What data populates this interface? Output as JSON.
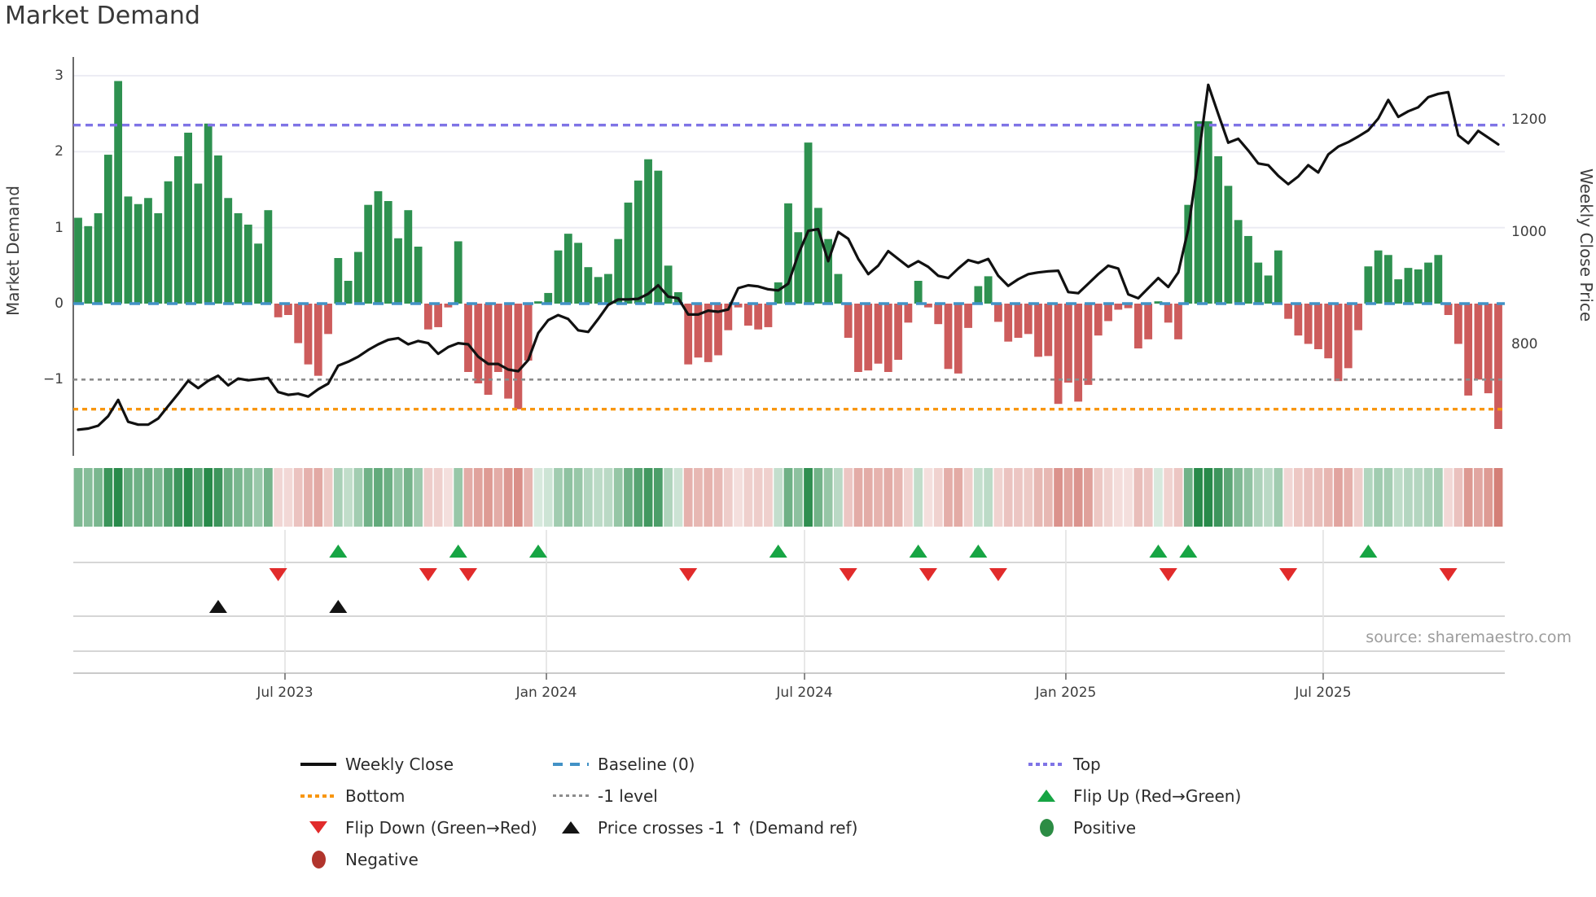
{
  "title": "Market Demand",
  "source": "source: sharemaestro.com",
  "axes": {
    "left_label": "Market Demand",
    "right_label": "Weekly Close Price",
    "left_ticks": [
      {
        "label": "3",
        "value": 3
      },
      {
        "label": "2",
        "value": 2
      },
      {
        "label": "1",
        "value": 1
      },
      {
        "label": "0",
        "value": 0
      },
      {
        "label": "−1",
        "value": -1
      }
    ],
    "right_ticks": [
      {
        "label": "1200",
        "value": 1200
      },
      {
        "label": "1000",
        "value": 1000
      },
      {
        "label": "800",
        "value": 800
      }
    ]
  },
  "chart_data": {
    "type": "bar+line",
    "x_unit": "week",
    "x_ticks": [
      {
        "label": "Jul 2023",
        "week": 20.68
      },
      {
        "label": "Jan 2024",
        "week": 46.82
      },
      {
        "label": "Jul 2024",
        "week": 72.63
      },
      {
        "label": "Jan 2025",
        "week": 98.76
      },
      {
        "label": "Jul 2025",
        "week": 124.49
      }
    ],
    "demand_ylim": [
      -2.05,
      3.22
    ],
    "price_ylim": [
      595,
      1306
    ],
    "reference_lines": {
      "baseline": {
        "label": "Baseline (0)",
        "value": 0,
        "color": "#4292c6",
        "style": "dashed"
      },
      "top": {
        "label": "Top",
        "value": 2.35,
        "color": "#7f74e6",
        "style": "dotted"
      },
      "bottom": {
        "label": "Bottom",
        "value": -1.39,
        "color": "#f8960f",
        "style": "dotted"
      },
      "minus1": {
        "label": "-1 level",
        "value": -1,
        "color": "#8c8c8c",
        "style": "dotted"
      }
    },
    "series": [
      {
        "name": "Market Demand",
        "type": "bar",
        "axis": "left",
        "positive_color": "#2e9150",
        "negative_color": "#cd5c5c",
        "values": [
          1.13,
          1.02,
          1.19,
          1.96,
          2.93,
          1.41,
          1.31,
          1.39,
          1.19,
          1.61,
          1.94,
          2.25,
          1.58,
          2.37,
          1.95,
          1.39,
          1.19,
          1.04,
          0.79,
          1.23,
          -0.18,
          -0.15,
          -0.52,
          -0.8,
          -0.95,
          -0.4,
          0.6,
          0.3,
          0.68,
          1.3,
          1.48,
          1.35,
          0.86,
          1.23,
          0.75,
          -0.34,
          -0.31,
          -0.05,
          0.82,
          -0.9,
          -1.05,
          -1.2,
          -0.9,
          -1.25,
          -1.39,
          -0.75,
          0.03,
          0.14,
          0.7,
          0.92,
          0.8,
          0.48,
          0.35,
          0.39,
          0.85,
          1.33,
          1.62,
          1.9,
          1.75,
          0.5,
          0.15,
          -0.8,
          -0.71,
          -0.77,
          -0.68,
          -0.35,
          -0.05,
          -0.29,
          -0.34,
          -0.31,
          0.28,
          1.32,
          0.94,
          2.12,
          1.26,
          0.85,
          0.39,
          -0.45,
          -0.9,
          -0.88,
          -0.79,
          -0.9,
          -0.74,
          -0.25,
          0.3,
          -0.05,
          -0.27,
          -0.86,
          -0.92,
          -0.32,
          0.23,
          0.36,
          -0.24,
          -0.5,
          -0.45,
          -0.4,
          -0.7,
          -0.69,
          -1.32,
          -1.04,
          -1.29,
          -1.07,
          -0.42,
          -0.23,
          -0.08,
          -0.06,
          -0.59,
          -0.47,
          0.03,
          -0.25,
          -0.47,
          1.3,
          2.4,
          2.4,
          1.94,
          1.55,
          1.1,
          0.89,
          0.54,
          0.37,
          0.7,
          -0.2,
          -0.42,
          -0.53,
          -0.6,
          -0.72,
          -1.02,
          -0.85,
          -0.35,
          0.49,
          0.7,
          0.64,
          0.32,
          0.47,
          0.45,
          0.54,
          0.64,
          -0.15,
          -0.53,
          -1.21,
          -1.0,
          -1.18,
          -1.65
        ]
      },
      {
        "name": "Weekly Close",
        "type": "line",
        "axis": "right",
        "color": "#111111",
        "values": [
          648,
          650,
          655,
          672,
          701,
          662,
          657,
          657,
          668,
          690,
          712,
          735,
          722,
          735,
          744,
          727,
          739,
          736,
          738,
          740,
          715,
          710,
          712,
          707,
          720,
          730,
          762,
          769,
          778,
          790,
          800,
          808,
          811,
          800,
          806,
          802,
          783,
          795,
          802,
          800,
          778,
          765,
          765,
          755,
          752,
          772,
          820,
          843,
          852,
          845,
          825,
          822,
          845,
          870,
          880,
          880,
          881,
          890,
          905,
          885,
          882,
          853,
          853,
          860,
          858,
          862,
          900,
          905,
          903,
          898,
          896,
          908,
          960,
          1002,
          1005,
          948,
          1000,
          988,
          952,
          925,
          940,
          966,
          952,
          938,
          948,
          938,
          922,
          918,
          935,
          950,
          945,
          952,
          922,
          904,
          916,
          925,
          928,
          930,
          931,
          893,
          891,
          908,
          925,
          940,
          935,
          889,
          882,
          900,
          918,
          902,
          928,
          1005,
          1130,
          1262,
          1210,
          1159,
          1166,
          1145,
          1122,
          1119,
          1100,
          1085,
          1099,
          1119,
          1106,
          1138,
          1152,
          1160,
          1170,
          1181,
          1202,
          1235,
          1205,
          1215,
          1222,
          1240,
          1246,
          1249,
          1172,
          1158,
          1180,
          1168,
          1156
        ]
      }
    ],
    "heat_strip": "green/red cells derived from demand sign, intensity by magnitude",
    "markers": {
      "flip_up": {
        "label": "Flip Up (Red→Green)",
        "color": "#17a544",
        "weeks": [
          26,
          38,
          46,
          70,
          84,
          90,
          108,
          111,
          129
        ]
      },
      "flip_down": {
        "label": "Flip Down (Green→Red)",
        "color": "#e12b2b",
        "weeks": [
          20,
          35,
          39,
          61,
          77,
          85,
          92,
          109,
          121,
          137
        ]
      },
      "price_cross": {
        "label": "Price crosses -1 ↑ (Demand ref)",
        "color": "#141414",
        "weeks": [
          14,
          26
        ]
      }
    }
  },
  "legend": {
    "items": [
      {
        "symbol": "black-line",
        "label": "Weekly Close"
      },
      {
        "symbol": "orange-dotted",
        "label": "Bottom"
      },
      {
        "symbol": "red-triangle-down",
        "label": "Flip Down (Green→Red)"
      },
      {
        "symbol": "darkred-circle",
        "label": "Negative"
      },
      {
        "symbol": "blue-dashed",
        "label": "Baseline (0)"
      },
      {
        "symbol": "gray-dotted",
        "label": "-1 level"
      },
      {
        "symbol": "black-triangle-up",
        "label": "Price crosses -1 ↑ (Demand ref)"
      },
      {
        "symbol": "purple-dotted",
        "label": "Top"
      },
      {
        "symbol": "green-triangle-up",
        "label": "Flip Up (Red→Green)"
      },
      {
        "symbol": "green-circle",
        "label": "Positive"
      }
    ]
  }
}
